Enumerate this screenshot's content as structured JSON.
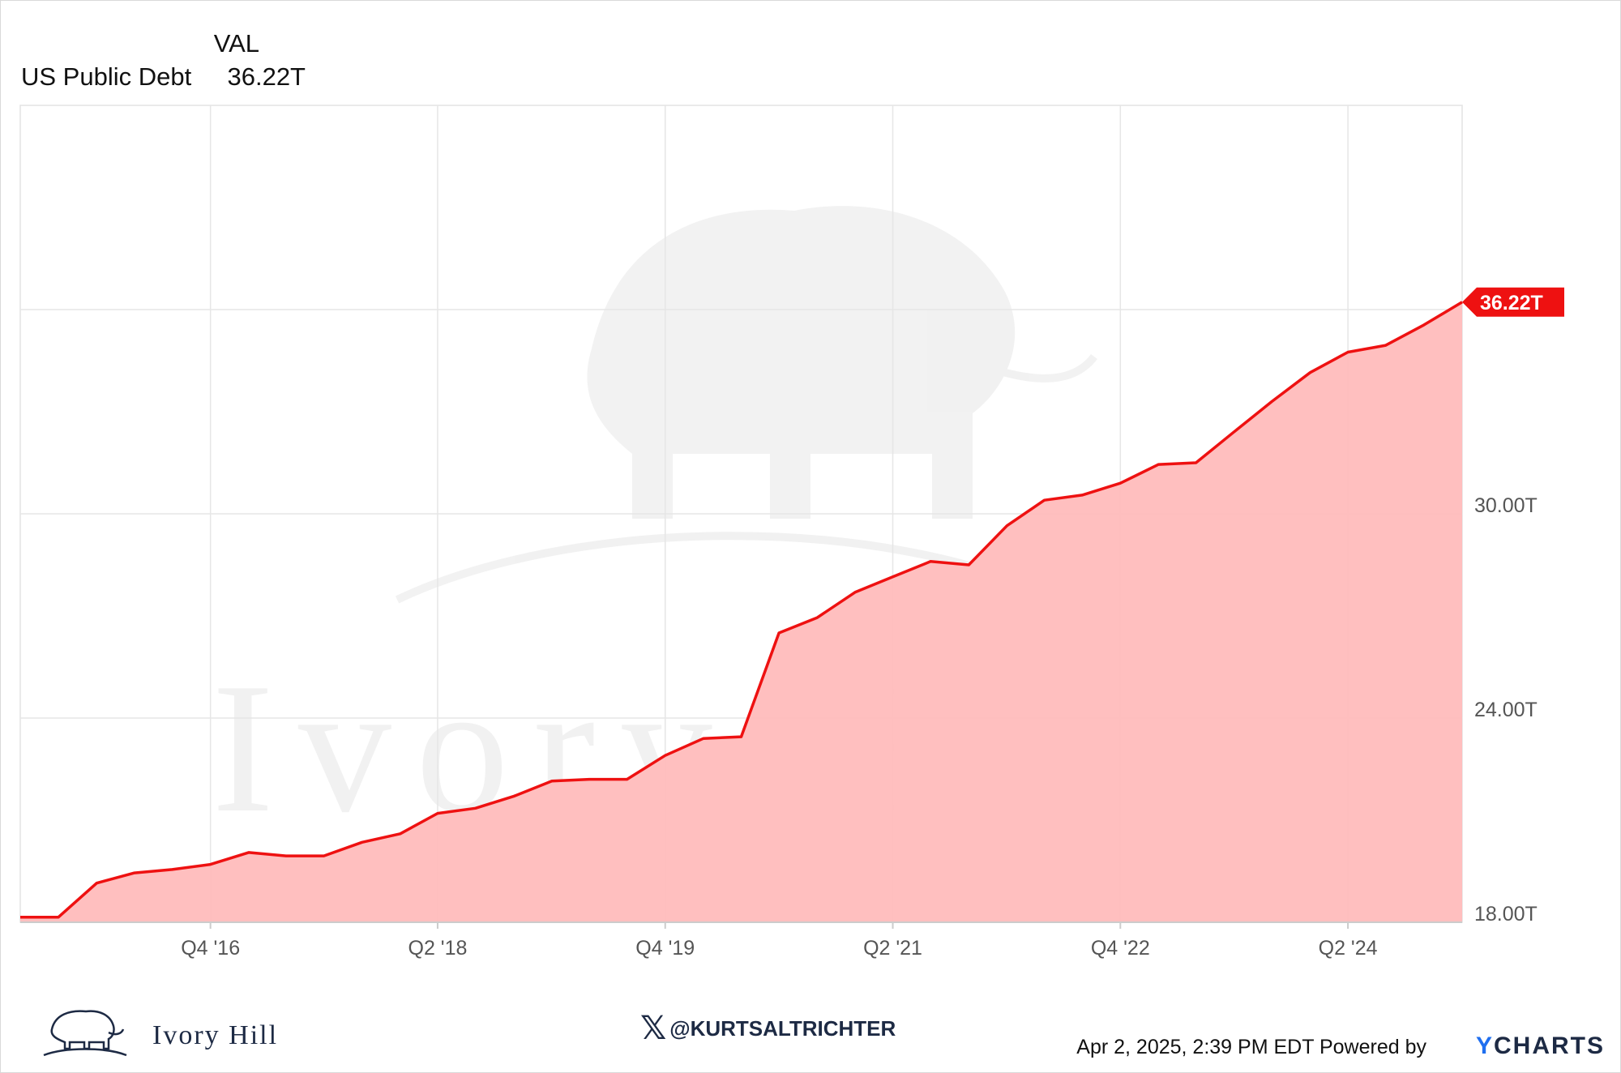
{
  "legend": {
    "column_header": "VAL",
    "series_name": "US Public Debt",
    "series_value": "36.22T"
  },
  "chart_data": {
    "type": "area",
    "title": "",
    "xlabel": "",
    "ylabel": "",
    "series": [
      {
        "name": "US Public Debt",
        "color": "#ee1111",
        "fill": "#ffbcbc",
        "x": [
          "2015-06-30",
          "2015-09-30",
          "2015-12-31",
          "2016-03-31",
          "2016-06-30",
          "2016-09-30",
          "2016-12-31",
          "2017-03-31",
          "2017-06-30",
          "2017-09-30",
          "2017-12-31",
          "2018-03-31",
          "2018-06-30",
          "2018-09-30",
          "2018-12-31",
          "2019-03-31",
          "2019-06-30",
          "2019-09-30",
          "2019-12-31",
          "2020-03-31",
          "2020-06-30",
          "2020-09-30",
          "2020-12-31",
          "2021-03-31",
          "2021-06-30",
          "2021-09-30",
          "2021-12-31",
          "2022-03-31",
          "2022-06-30",
          "2022-09-30",
          "2022-12-31",
          "2023-03-31",
          "2023-06-30",
          "2023-09-30",
          "2023-12-31",
          "2024-03-31",
          "2024-06-30",
          "2024-09-30",
          "2024-12-31"
        ],
        "values": [
          18.15,
          18.15,
          19.15,
          19.45,
          19.55,
          19.7,
          20.05,
          19.95,
          19.95,
          20.35,
          20.6,
          21.2,
          21.35,
          21.7,
          22.15,
          22.2,
          22.2,
          22.9,
          23.4,
          23.45,
          26.5,
          26.95,
          27.7,
          28.15,
          28.6,
          28.5,
          29.65,
          30.4,
          30.55,
          30.9,
          31.45,
          31.5,
          32.4,
          33.3,
          34.15,
          34.75,
          34.95,
          35.55,
          36.22
        ]
      }
    ],
    "x_ticks": [
      "Q4 '16",
      "Q2 '18",
      "Q4 '19",
      "Q2 '21",
      "Q4 '22",
      "Q2 '24"
    ],
    "x_tick_dates": [
      "2016-09-30",
      "2018-03-31",
      "2019-09-30",
      "2021-03-31",
      "2022-09-30",
      "2024-03-31"
    ],
    "x_range": [
      "2015-06-30",
      "2024-12-31"
    ],
    "y_ticks": [
      "18.00T",
      "24.00T",
      "30.00T"
    ],
    "y_tick_values": [
      18,
      24,
      30
    ],
    "ylim": [
      18,
      42
    ],
    "last_value_label": "36.22T",
    "grid": true,
    "watermark": "Ivory Hill"
  },
  "footer": {
    "brand": "Ivory Hill",
    "handle": "@KURTSALTRICHTER",
    "handle_icon": "x-logo-icon",
    "timestamp": "Apr 2, 2025, 2:39 PM EDT Powered by",
    "provider_initial": "Y",
    "provider_rest": "CHARTS"
  }
}
